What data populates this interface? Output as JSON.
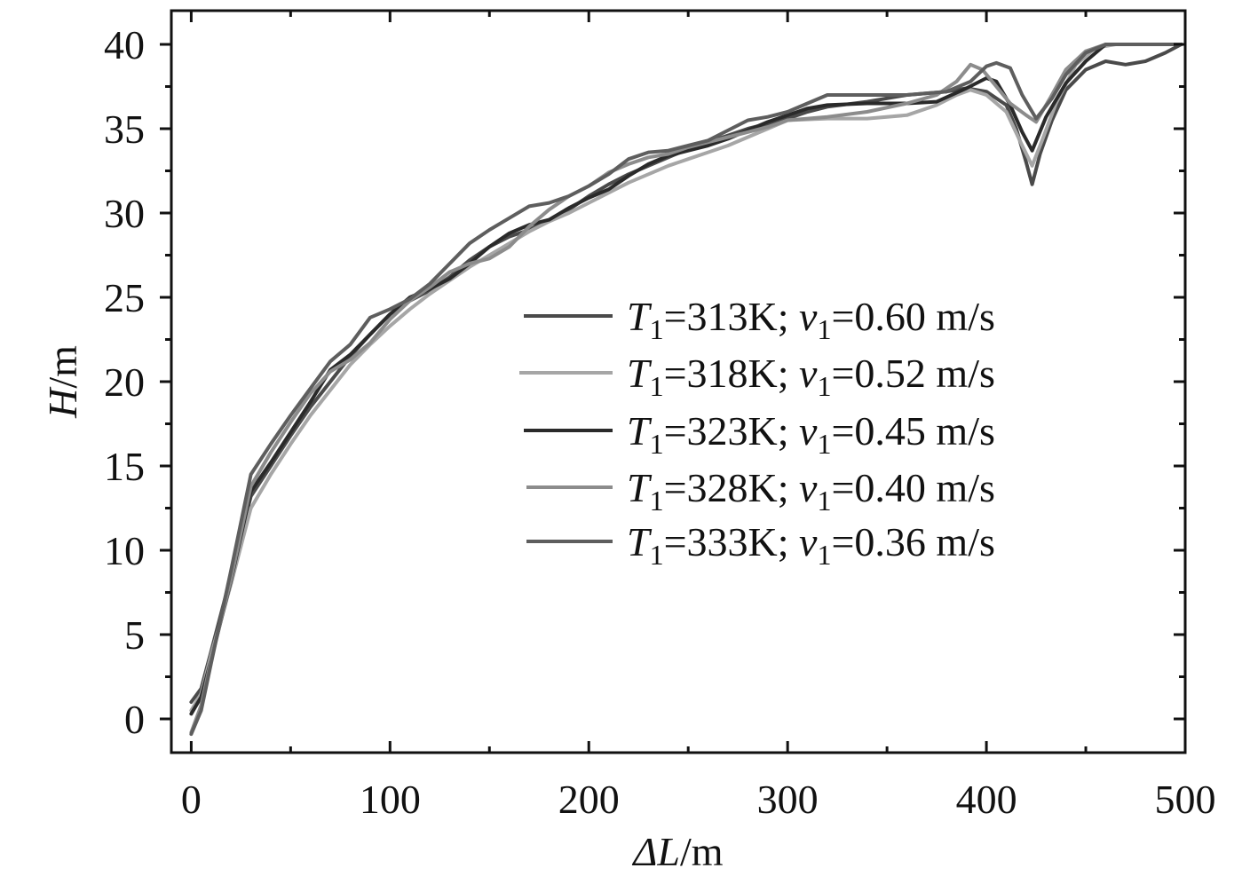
{
  "chart_data": {
    "type": "line",
    "xlabel": {
      "italic": "ΔL",
      "unit": "/m"
    },
    "ylabel": {
      "italic": "H",
      "unit": "/m"
    },
    "xlim": [
      -10,
      500
    ],
    "ylim": [
      -2,
      42
    ],
    "x_ticks": [
      "0",
      "100",
      "200",
      "300",
      "400",
      "500"
    ],
    "y_ticks": [
      "0",
      "5",
      "10",
      "15",
      "20",
      "25",
      "30",
      "35",
      "40"
    ],
    "grid": false,
    "legend_position": "center-right",
    "series": [
      {
        "name": "T1=313K; v1=0.60 m/s",
        "label": {
          "T": "T",
          "Tsub": "1",
          "Tval": "=313K; ",
          "v": "v",
          "vsub": "1",
          "vval": "=0.60 m/s"
        },
        "color": "#4a4a4a",
        "points": [
          [
            0,
            1.0
          ],
          [
            5,
            1.8
          ],
          [
            10,
            4.0
          ],
          [
            20,
            8.5
          ],
          [
            30,
            13.2
          ],
          [
            40,
            15.0
          ],
          [
            50,
            16.8
          ],
          [
            60,
            18.5
          ],
          [
            70,
            20.0
          ],
          [
            80,
            21.5
          ],
          [
            90,
            22.8
          ],
          [
            100,
            24.0
          ],
          [
            110,
            24.8
          ],
          [
            120,
            25.4
          ],
          [
            130,
            26.2
          ],
          [
            140,
            27.2
          ],
          [
            150,
            28.0
          ],
          [
            160,
            28.6
          ],
          [
            170,
            29.0
          ],
          [
            180,
            29.6
          ],
          [
            190,
            30.2
          ],
          [
            200,
            31.0
          ],
          [
            210,
            31.7
          ],
          [
            220,
            32.3
          ],
          [
            230,
            32.8
          ],
          [
            240,
            33.3
          ],
          [
            250,
            33.8
          ],
          [
            260,
            34.2
          ],
          [
            270,
            34.6
          ],
          [
            280,
            35.0
          ],
          [
            290,
            35.3
          ],
          [
            300,
            35.6
          ],
          [
            310,
            36.0
          ],
          [
            320,
            36.3
          ],
          [
            340,
            36.6
          ],
          [
            360,
            37.0
          ],
          [
            380,
            37.2
          ],
          [
            390,
            37.4
          ],
          [
            400,
            37.2
          ],
          [
            410,
            36.4
          ],
          [
            415,
            35.0
          ],
          [
            420,
            33.0
          ],
          [
            423,
            31.7
          ],
          [
            427,
            33.5
          ],
          [
            433,
            35.5
          ],
          [
            440,
            37.3
          ],
          [
            450,
            38.5
          ],
          [
            460,
            39.0
          ],
          [
            470,
            38.8
          ],
          [
            480,
            39.0
          ],
          [
            490,
            39.5
          ],
          [
            498,
            40.0
          ]
        ]
      },
      {
        "name": "T1=318K; v1=0.52 m/s",
        "label": {
          "T": "T",
          "Tsub": "1",
          "Tval": "=318K; ",
          "v": "v",
          "vsub": "1",
          "vval": "=0.52 m/s"
        },
        "color": "#a6a6a6",
        "points": [
          [
            0,
            0.5
          ],
          [
            5,
            1.5
          ],
          [
            10,
            3.8
          ],
          [
            20,
            8.0
          ],
          [
            30,
            12.5
          ],
          [
            40,
            14.5
          ],
          [
            50,
            16.3
          ],
          [
            60,
            18.0
          ],
          [
            70,
            19.5
          ],
          [
            80,
            21.0
          ],
          [
            90,
            22.2
          ],
          [
            100,
            23.3
          ],
          [
            110,
            24.3
          ],
          [
            120,
            25.2
          ],
          [
            130,
            26.0
          ],
          [
            140,
            26.8
          ],
          [
            150,
            27.5
          ],
          [
            160,
            28.2
          ],
          [
            170,
            28.9
          ],
          [
            180,
            29.5
          ],
          [
            190,
            30.0
          ],
          [
            200,
            30.6
          ],
          [
            210,
            31.2
          ],
          [
            220,
            31.8
          ],
          [
            230,
            32.3
          ],
          [
            240,
            32.8
          ],
          [
            250,
            33.2
          ],
          [
            260,
            33.6
          ],
          [
            270,
            34.0
          ],
          [
            280,
            34.5
          ],
          [
            290,
            35.0
          ],
          [
            300,
            35.5
          ],
          [
            320,
            35.6
          ],
          [
            340,
            35.6
          ],
          [
            360,
            35.8
          ],
          [
            375,
            36.4
          ],
          [
            385,
            37.0
          ],
          [
            392,
            37.3
          ],
          [
            400,
            37.0
          ],
          [
            410,
            36.0
          ],
          [
            418,
            34.0
          ],
          [
            423,
            32.8
          ],
          [
            428,
            34.3
          ],
          [
            435,
            36.5
          ],
          [
            445,
            38.8
          ],
          [
            455,
            39.8
          ],
          [
            465,
            40.0
          ],
          [
            480,
            40.0
          ],
          [
            498,
            40.0
          ]
        ]
      },
      {
        "name": "T1=323K; v1=0.45 m/s",
        "label": {
          "T": "T",
          "Tsub": "1",
          "Tval": "=323K; ",
          "v": "v",
          "vsub": "1",
          "vval": "=0.45 m/s"
        },
        "color": "#2a2a2a",
        "points": [
          [
            0,
            0.3
          ],
          [
            5,
            1.3
          ],
          [
            10,
            3.5
          ],
          [
            20,
            8.2
          ],
          [
            30,
            13.5
          ],
          [
            40,
            15.2
          ],
          [
            50,
            17.0
          ],
          [
            60,
            18.8
          ],
          [
            70,
            20.7
          ],
          [
            80,
            21.6
          ],
          [
            90,
            22.8
          ],
          [
            100,
            24.0
          ],
          [
            110,
            25.0
          ],
          [
            120,
            25.5
          ],
          [
            130,
            26.1
          ],
          [
            140,
            27.0
          ],
          [
            150,
            28.0
          ],
          [
            160,
            28.8
          ],
          [
            170,
            29.3
          ],
          [
            180,
            29.6
          ],
          [
            190,
            30.3
          ],
          [
            200,
            30.9
          ],
          [
            210,
            31.4
          ],
          [
            220,
            32.2
          ],
          [
            230,
            32.9
          ],
          [
            240,
            33.4
          ],
          [
            250,
            33.7
          ],
          [
            260,
            34.0
          ],
          [
            270,
            34.4
          ],
          [
            280,
            34.9
          ],
          [
            290,
            35.4
          ],
          [
            300,
            35.8
          ],
          [
            310,
            36.2
          ],
          [
            320,
            36.4
          ],
          [
            340,
            36.5
          ],
          [
            360,
            36.5
          ],
          [
            375,
            36.6
          ],
          [
            390,
            37.4
          ],
          [
            400,
            38.0
          ],
          [
            405,
            37.8
          ],
          [
            412,
            36.4
          ],
          [
            418,
            34.8
          ],
          [
            423,
            33.7
          ],
          [
            430,
            35.7
          ],
          [
            440,
            37.7
          ],
          [
            450,
            39.0
          ],
          [
            460,
            40.0
          ],
          [
            470,
            40.0
          ],
          [
            498,
            40.0
          ]
        ]
      },
      {
        "name": "T1=328K; v1=0.40 m/s",
        "label": {
          "T": "T",
          "Tsub": "1",
          "Tval": "=328K; ",
          "v": "v",
          "vsub": "1",
          "vval": "=0.40 m/s"
        },
        "color": "#8c8c8c",
        "points": [
          [
            0,
            -0.8
          ],
          [
            5,
            0.8
          ],
          [
            10,
            3.5
          ],
          [
            20,
            8.3
          ],
          [
            30,
            13.8
          ],
          [
            40,
            15.8
          ],
          [
            50,
            17.6
          ],
          [
            60,
            19.3
          ],
          [
            70,
            20.6
          ],
          [
            80,
            21.3
          ],
          [
            90,
            22.3
          ],
          [
            100,
            23.7
          ],
          [
            110,
            24.8
          ],
          [
            120,
            25.6
          ],
          [
            130,
            26.5
          ],
          [
            140,
            27.0
          ],
          [
            150,
            27.3
          ],
          [
            160,
            28.0
          ],
          [
            170,
            29.2
          ],
          [
            180,
            30.2
          ],
          [
            190,
            31.0
          ],
          [
            200,
            31.6
          ],
          [
            210,
            32.4
          ],
          [
            220,
            32.9
          ],
          [
            230,
            33.3
          ],
          [
            240,
            33.5
          ],
          [
            250,
            33.9
          ],
          [
            260,
            34.2
          ],
          [
            270,
            34.5
          ],
          [
            280,
            34.8
          ],
          [
            290,
            35.1
          ],
          [
            300,
            35.5
          ],
          [
            320,
            35.7
          ],
          [
            340,
            36.0
          ],
          [
            360,
            36.5
          ],
          [
            375,
            37.0
          ],
          [
            385,
            37.8
          ],
          [
            392,
            38.8
          ],
          [
            398,
            38.5
          ],
          [
            405,
            37.5
          ],
          [
            412,
            36.5
          ],
          [
            420,
            35.8
          ],
          [
            425,
            35.4
          ],
          [
            432,
            36.8
          ],
          [
            440,
            38.5
          ],
          [
            450,
            39.6
          ],
          [
            460,
            40.0
          ],
          [
            480,
            40.0
          ],
          [
            498,
            40.0
          ]
        ]
      },
      {
        "name": "T1=333K; v1=0.36 m/s",
        "label": {
          "T": "T",
          "Tsub": "1",
          "Tval": "=333K; ",
          "v": "v",
          "vsub": "1",
          "vval": "=0.36 m/s"
        },
        "color": "#5e5e5e",
        "points": [
          [
            0,
            -0.9
          ],
          [
            5,
            0.5
          ],
          [
            10,
            3.3
          ],
          [
            20,
            8.8
          ],
          [
            30,
            14.5
          ],
          [
            40,
            16.3
          ],
          [
            50,
            18.0
          ],
          [
            60,
            19.6
          ],
          [
            70,
            21.2
          ],
          [
            80,
            22.2
          ],
          [
            90,
            23.8
          ],
          [
            100,
            24.3
          ],
          [
            110,
            24.9
          ],
          [
            120,
            25.8
          ],
          [
            130,
            27.0
          ],
          [
            140,
            28.2
          ],
          [
            150,
            29.0
          ],
          [
            160,
            29.7
          ],
          [
            170,
            30.4
          ],
          [
            180,
            30.6
          ],
          [
            190,
            31.0
          ],
          [
            200,
            31.6
          ],
          [
            210,
            32.3
          ],
          [
            220,
            33.2
          ],
          [
            230,
            33.6
          ],
          [
            240,
            33.7
          ],
          [
            250,
            34.0
          ],
          [
            260,
            34.3
          ],
          [
            270,
            34.9
          ],
          [
            280,
            35.5
          ],
          [
            290,
            35.7
          ],
          [
            300,
            36.0
          ],
          [
            310,
            36.5
          ],
          [
            320,
            37.0
          ],
          [
            340,
            37.0
          ],
          [
            360,
            37.0
          ],
          [
            380,
            37.2
          ],
          [
            392,
            37.8
          ],
          [
            400,
            38.7
          ],
          [
            405,
            38.9
          ],
          [
            412,
            38.6
          ],
          [
            418,
            37.0
          ],
          [
            425,
            35.6
          ],
          [
            433,
            36.8
          ],
          [
            440,
            38.2
          ],
          [
            450,
            39.5
          ],
          [
            460,
            40.0
          ],
          [
            480,
            40.0
          ],
          [
            498,
            40.0
          ]
        ]
      }
    ]
  }
}
